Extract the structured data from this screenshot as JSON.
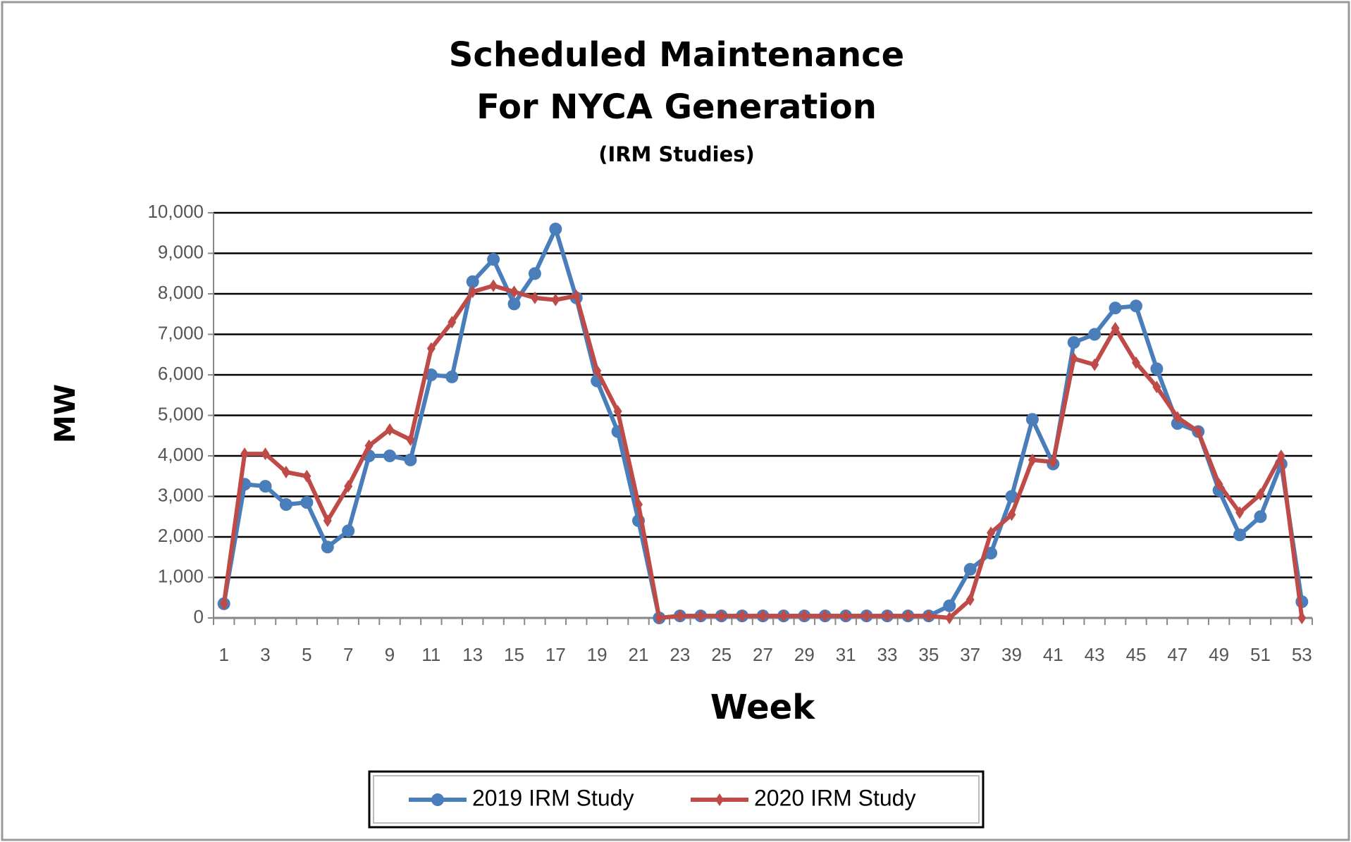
{
  "chart_data": {
    "type": "line",
    "title": "Scheduled Maintenance",
    "subtitle": "For NYCA Generation",
    "note": "(IRM Studies)",
    "y_label": "MW",
    "x_label": "Week",
    "categories": [
      "1",
      null,
      "3",
      null,
      "5",
      null,
      "7",
      null,
      "9",
      null,
      "11",
      null,
      "13",
      null,
      "15",
      null,
      "17",
      null,
      "19",
      null,
      "21",
      null,
      "23",
      null,
      "25",
      null,
      "27",
      null,
      "29",
      null,
      "31",
      null,
      "33",
      null,
      "35",
      null,
      "37",
      null,
      "39",
      null,
      "41",
      null,
      "43",
      null,
      "45",
      null,
      "47",
      null,
      "49",
      null,
      "51",
      null,
      "53"
    ],
    "series": [
      {
        "name": "2019 IRM Study",
        "color": "#4a7ebb",
        "marker": "circle",
        "values": [
          350,
          3300,
          3250,
          2800,
          2850,
          1750,
          2150,
          4000,
          4000,
          3900,
          6000,
          5950,
          8300,
          8850,
          7750,
          8500,
          9600,
          7900,
          5850,
          4600,
          2400,
          0,
          50,
          50,
          50,
          50,
          50,
          50,
          50,
          50,
          50,
          50,
          50,
          50,
          50,
          300,
          1200,
          1600,
          3000,
          4900,
          3800,
          6800,
          7000,
          7650,
          7700,
          6150,
          4800,
          4600,
          3150,
          2050,
          2500,
          3800,
          400
        ]
      },
      {
        "name": "2020 IRM Study",
        "color": "#be4b48",
        "marker": "diamond",
        "values": [
          350,
          4050,
          4050,
          3600,
          3500,
          2400,
          3250,
          4250,
          4650,
          4400,
          6650,
          7300,
          8050,
          8200,
          8050,
          7900,
          7850,
          7950,
          6100,
          5100,
          2800,
          0,
          50,
          50,
          50,
          50,
          50,
          50,
          50,
          50,
          50,
          50,
          50,
          50,
          50,
          0,
          450,
          2100,
          2550,
          3900,
          3850,
          6400,
          6250,
          7150,
          6300,
          5700,
          4950,
          4600,
          3300,
          2600,
          3050,
          4000,
          0
        ]
      }
    ],
    "ylim": [
      0,
      10000
    ],
    "yticks": [
      0,
      {
        "value": 1000,
        "label": "1,000"
      },
      {
        "value": 2000,
        "label": "2,000"
      },
      {
        "value": 3000,
        "label": "3,000"
      },
      {
        "value": 4000,
        "label": "4,000"
      },
      {
        "value": 5000,
        "label": "5,000"
      },
      {
        "value": 6000,
        "label": "6,000"
      },
      {
        "value": 7000,
        "label": "7,000"
      },
      {
        "value": 8000,
        "label": "8,000"
      },
      {
        "value": 9000,
        "label": "9,000"
      },
      {
        "value": 10000,
        "label": "10,000"
      }
    ],
    "grid": true,
    "legend": "bottom"
  }
}
